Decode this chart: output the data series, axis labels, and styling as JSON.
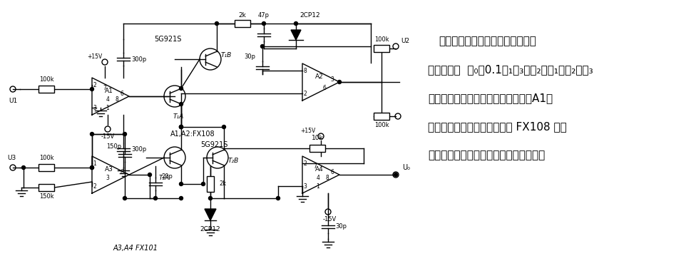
{
  "bg_color": "#ffffff",
  "lc": "#000000",
  "lw": 1.0,
  "fig_w": 9.7,
  "fig_h": 3.73,
  "dpi": 100,
  "text": {
    "line1": "大动态范围的模拟乘除电路　该电",
    "line2": "路输出电压  ｕ₀＝0.1ｕ₁ｕ₃／ｕ₂，ｕ₁、ｕ₂、ｕ₃",
    "line3": "均为正值。为了提高输入电平精度，A1采",
    "line4": "用输入偏置电流及其漂移小的 FX108 运算",
    "line5": "放大器。两只三极管特性应尽可能匹配。"
  }
}
